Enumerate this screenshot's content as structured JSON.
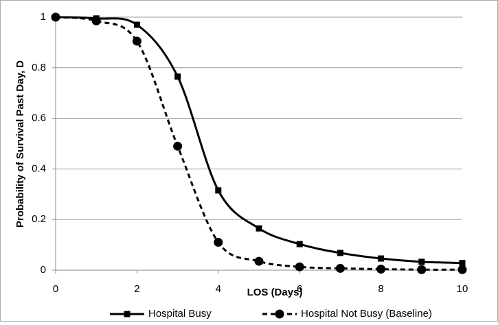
{
  "chart_data": {
    "type": "line",
    "x_label": "LOS (Days)",
    "y_label": "Probability of Survival Past Day, D",
    "x": [
      0,
      1,
      2,
      3,
      4,
      5,
      6,
      7,
      8,
      9,
      10
    ],
    "series": [
      {
        "name": "Hospital Busy",
        "color": "#000000",
        "line_style": "solid",
        "marker": "square",
        "values": [
          1,
          0.995,
          0.97,
          0.765,
          0.315,
          0.165,
          0.103,
          0.068,
          0.046,
          0.033,
          0.028
        ]
      },
      {
        "name": "Hospital Not Busy (Baseline)",
        "color": "#000000",
        "line_style": "dashed",
        "marker": "circle",
        "values": [
          1,
          0.985,
          0.905,
          0.49,
          0.11,
          0.035,
          0.013,
          0.007,
          0.004,
          0.002,
          0.002
        ]
      }
    ],
    "xlim": [
      0,
      10
    ],
    "xticks": [
      0,
      2,
      4,
      6,
      8,
      10
    ],
    "ylim": [
      0,
      1
    ],
    "yticks": [
      0,
      0.2,
      0.4,
      0.6,
      0.8,
      1
    ],
    "grid": true,
    "legend": "bottom"
  }
}
